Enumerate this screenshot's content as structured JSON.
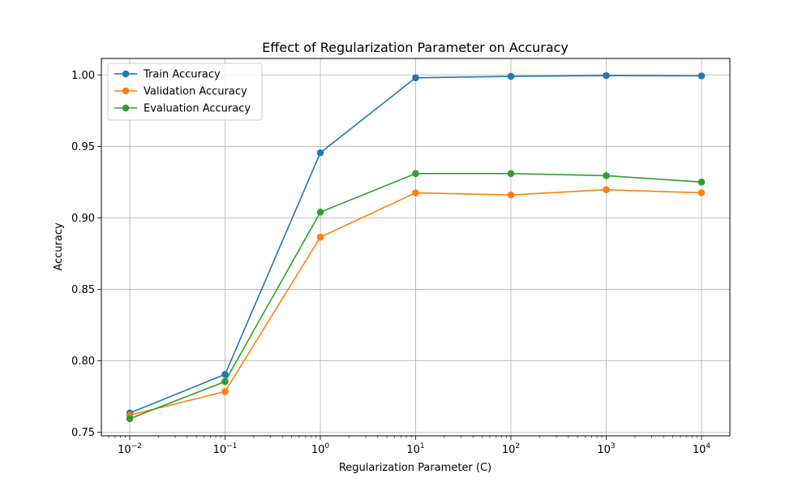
{
  "chart_data": {
    "type": "line",
    "title": "Effect of Regularization Parameter on Accuracy",
    "xlabel": "Regularization Parameter (C)",
    "ylabel": "Accuracy",
    "xscale": "log",
    "x": [
      0.01,
      0.1,
      1,
      10,
      100,
      1000,
      10000
    ],
    "x_tick_labels": [
      {
        "base": "10",
        "exp": "−2"
      },
      {
        "base": "10",
        "exp": "−1"
      },
      {
        "base": "10",
        "exp": "0"
      },
      {
        "base": "10",
        "exp": "1"
      },
      {
        "base": "10",
        "exp": "2"
      },
      {
        "base": "10",
        "exp": "3"
      },
      {
        "base": "10",
        "exp": "4"
      }
    ],
    "y_ticks": [
      0.75,
      0.8,
      0.85,
      0.9,
      0.95,
      1.0
    ],
    "y_tick_labels": [
      "0.75",
      "0.80",
      "0.85",
      "0.90",
      "0.95",
      "1.00"
    ],
    "ylim": [
      0.7475,
      1.0115
    ],
    "grid": true,
    "legend_position": "upper-left",
    "series": [
      {
        "name": "Train Accuracy",
        "color": "#1f77b4",
        "values": [
          0.7635,
          0.7905,
          0.9455,
          0.998,
          0.999,
          0.9995,
          0.9993
        ]
      },
      {
        "name": "Validation Accuracy",
        "color": "#ff7f0e",
        "values": [
          0.762,
          0.7785,
          0.8865,
          0.9175,
          0.916,
          0.9197,
          0.9175
        ]
      },
      {
        "name": "Evaluation Accuracy",
        "color": "#2ca02c",
        "values": [
          0.7595,
          0.7855,
          0.904,
          0.931,
          0.931,
          0.9295,
          0.925
        ]
      }
    ]
  }
}
